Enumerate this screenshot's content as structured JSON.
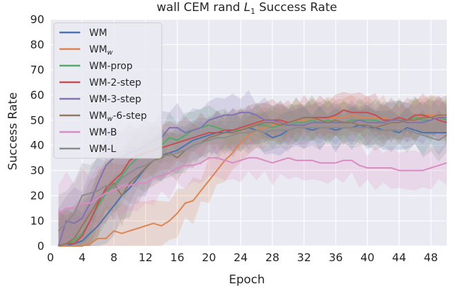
{
  "chart_data": {
    "type": "line",
    "title": "wall CEM rand L1 Success Rate",
    "title_prefix": "wall CEM rand ",
    "title_var": "L",
    "title_sub": "1",
    "title_suffix": " Success Rate",
    "xlabel": "Epoch",
    "ylabel": "Success Rate",
    "xlim": [
      0,
      50
    ],
    "ylim": [
      0,
      90
    ],
    "xticks": [
      0,
      4,
      8,
      12,
      16,
      20,
      24,
      28,
      32,
      36,
      40,
      44,
      48
    ],
    "yticks": [
      0,
      10,
      20,
      30,
      40,
      50,
      60,
      70,
      80,
      90
    ],
    "grid": true,
    "legend_position": "top-left",
    "x": [
      1,
      2,
      3,
      4,
      5,
      6,
      7,
      8,
      9,
      10,
      11,
      12,
      13,
      14,
      15,
      16,
      17,
      18,
      19,
      20,
      21,
      22,
      23,
      24,
      25,
      26,
      27,
      28,
      29,
      30,
      31,
      32,
      33,
      34,
      35,
      36,
      37,
      38,
      39,
      40,
      41,
      42,
      43,
      44,
      45,
      46,
      47,
      48,
      49,
      50
    ],
    "series": [
      {
        "name": "WM",
        "base": "WM",
        "sub": "",
        "suffix": "",
        "color": "#4c72b0",
        "values": [
          0,
          0,
          1,
          2,
          5,
          8,
          12,
          16,
          20,
          23,
          27,
          31,
          34,
          36,
          37,
          38,
          40,
          42,
          43,
          44,
          45,
          45,
          46,
          46,
          47,
          46,
          45,
          43,
          44,
          46,
          47,
          47,
          46,
          47,
          47,
          46,
          47,
          47,
          48,
          47,
          47,
          46,
          46,
          45,
          47,
          46,
          45,
          45,
          45,
          45
        ]
      },
      {
        "name": "WMw",
        "base": "WM",
        "sub": "w",
        "suffix": "",
        "color": "#dd8452",
        "values": [
          0,
          0,
          0,
          0,
          1,
          3,
          3,
          6,
          5,
          6,
          7,
          8,
          9,
          8,
          10,
          13,
          17,
          18,
          22,
          26,
          30,
          34,
          37,
          41,
          44,
          46,
          47,
          48,
          49,
          49,
          50,
          50,
          50,
          51,
          51,
          51,
          51,
          52,
          51,
          51,
          51,
          51,
          50,
          50,
          49,
          50,
          52,
          52,
          52,
          50
        ]
      },
      {
        "name": "WM-prop",
        "base": "WM-prop",
        "sub": "",
        "suffix": "",
        "color": "#55a868",
        "values": [
          0,
          1,
          2,
          5,
          10,
          16,
          21,
          24,
          28,
          32,
          35,
          37,
          38,
          40,
          43,
          42,
          44,
          46,
          47,
          48,
          47,
          46,
          46,
          46,
          47,
          48,
          48,
          47,
          48,
          48,
          49,
          49,
          50,
          49,
          50,
          49,
          49,
          50,
          50,
          50,
          50,
          49,
          50,
          50,
          50,
          51,
          50,
          50,
          51,
          50
        ]
      },
      {
        "name": "WM-2-step",
        "base": "WM-2-step",
        "sub": "",
        "suffix": "",
        "color": "#c44e52",
        "values": [
          0,
          1,
          1,
          4,
          10,
          17,
          23,
          26,
          29,
          34,
          36,
          37,
          38,
          39,
          40,
          41,
          42,
          43,
          44,
          45,
          45,
          46,
          46,
          47,
          48,
          49,
          50,
          50,
          50,
          49,
          50,
          51,
          51,
          51,
          51,
          52,
          54,
          53,
          53,
          53,
          52,
          50,
          50,
          51,
          50,
          52,
          52,
          51,
          50,
          49
        ]
      },
      {
        "name": "WM-3-step",
        "base": "WM-3-step",
        "sub": "",
        "suffix": "",
        "color": "#8172b3",
        "values": [
          0,
          10,
          9,
          11,
          17,
          25,
          32,
          35,
          35,
          37,
          38,
          40,
          42,
          43,
          47,
          47,
          45,
          46,
          47,
          50,
          51,
          52,
          52,
          53,
          53,
          52,
          50,
          50,
          49,
          48,
          48,
          48,
          49,
          49,
          49,
          49,
          49,
          49,
          50,
          49,
          49,
          49,
          50,
          50,
          49,
          49,
          49,
          50,
          51,
          51
        ]
      },
      {
        "name": "WMw-6-step",
        "base": "WM",
        "sub": "w",
        "suffix": "-6-step",
        "color": "#937860",
        "values": [
          0,
          1,
          3,
          8,
          13,
          18,
          22,
          25,
          20,
          25,
          28,
          31,
          34,
          35,
          37,
          35,
          38,
          40,
          41,
          43,
          44,
          45,
          45,
          46,
          47,
          48,
          49,
          49,
          48,
          49,
          50,
          51,
          51,
          50,
          49,
          50,
          49,
          49,
          48,
          48,
          47,
          48,
          49,
          49,
          50,
          50,
          51,
          51,
          52,
          52
        ]
      },
      {
        "name": "WM-B",
        "base": "WM-B",
        "sub": "",
        "suffix": "",
        "color": "#da8bc3",
        "values": [
          13,
          15,
          15,
          17,
          17,
          19,
          21,
          22,
          24,
          24,
          25,
          25,
          27,
          28,
          29,
          31,
          32,
          32,
          33,
          35,
          35,
          34,
          33,
          34,
          35,
          35,
          34,
          33,
          34,
          35,
          34,
          34,
          34,
          33,
          33,
          33,
          34,
          34,
          32,
          31,
          31,
          31,
          31,
          30,
          30,
          30,
          30,
          31,
          32,
          33
        ]
      },
      {
        "name": "WM-L",
        "base": "WM-L",
        "sub": "",
        "suffix": "",
        "color": "#8c8c8c",
        "values": [
          6,
          9,
          13,
          20,
          21,
          22,
          24,
          23,
          27,
          29,
          31,
          32,
          34,
          36,
          36,
          37,
          38,
          40,
          41,
          42,
          43,
          43,
          44,
          45,
          45,
          46,
          45,
          46,
          46,
          46,
          47,
          47,
          47,
          47,
          47,
          47,
          47,
          47,
          47,
          47,
          46,
          46,
          46,
          46,
          46,
          45,
          44,
          43,
          42,
          44
        ]
      }
    ]
  }
}
